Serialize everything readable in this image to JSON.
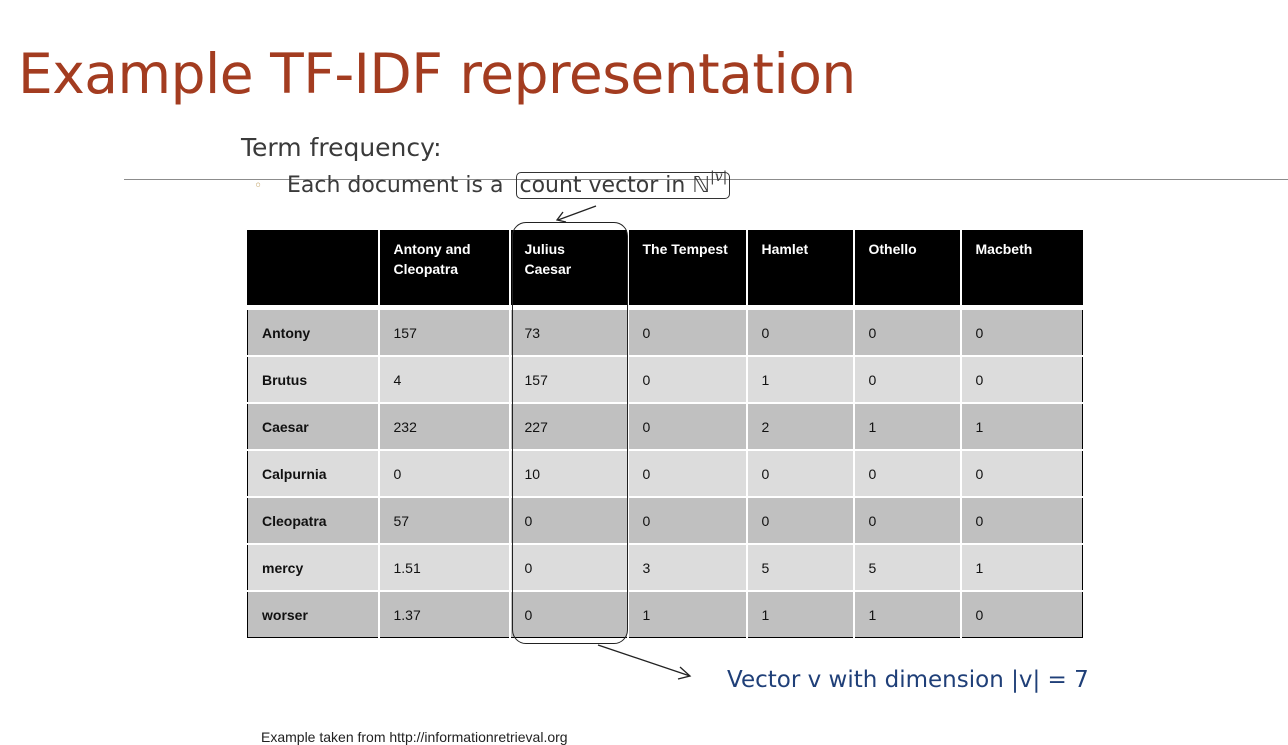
{
  "slide": {
    "title": "Example TF-IDF representation",
    "subtitle": "Term frequency:",
    "bullet": {
      "prefix": "Each document is a",
      "boxed_text": "count vector  in ℕ",
      "superscript": "|v|"
    },
    "vector_note": "Vector v with dimension |v| = 7",
    "footer": "Example taken from http://informationretrieval.org"
  },
  "table": {
    "columns": [
      "",
      "Antony and Cleopatra",
      "Julius Caesar",
      "The Tempest",
      "Hamlet",
      "Othello",
      "Macbeth"
    ],
    "rows": [
      {
        "term": "Antony",
        "values": [
          "157",
          "73",
          "0",
          "0",
          "0",
          "0"
        ]
      },
      {
        "term": "Brutus",
        "values": [
          "4",
          "157",
          "0",
          "1",
          "0",
          "0"
        ]
      },
      {
        "term": "Caesar",
        "values": [
          "232",
          "227",
          "0",
          "2",
          "1",
          "1"
        ]
      },
      {
        "term": "Calpurnia",
        "values": [
          "0",
          "10",
          "0",
          "0",
          "0",
          "0"
        ]
      },
      {
        "term": "Cleopatra",
        "values": [
          "57",
          "0",
          "0",
          "0",
          "0",
          "0"
        ]
      },
      {
        "term": "mercy",
        "values": [
          "1.51",
          "0",
          "3",
          "5",
          "5",
          "1"
        ]
      },
      {
        "term": "worser",
        "values": [
          "1.37",
          "0",
          "1",
          "1",
          "1",
          "0"
        ]
      }
    ]
  },
  "colors": {
    "title": "#a33c20",
    "header_bg": "#000000",
    "row_dark": "#c0c0c0",
    "row_light": "#dcdcdc",
    "note": "#1f3f78"
  }
}
